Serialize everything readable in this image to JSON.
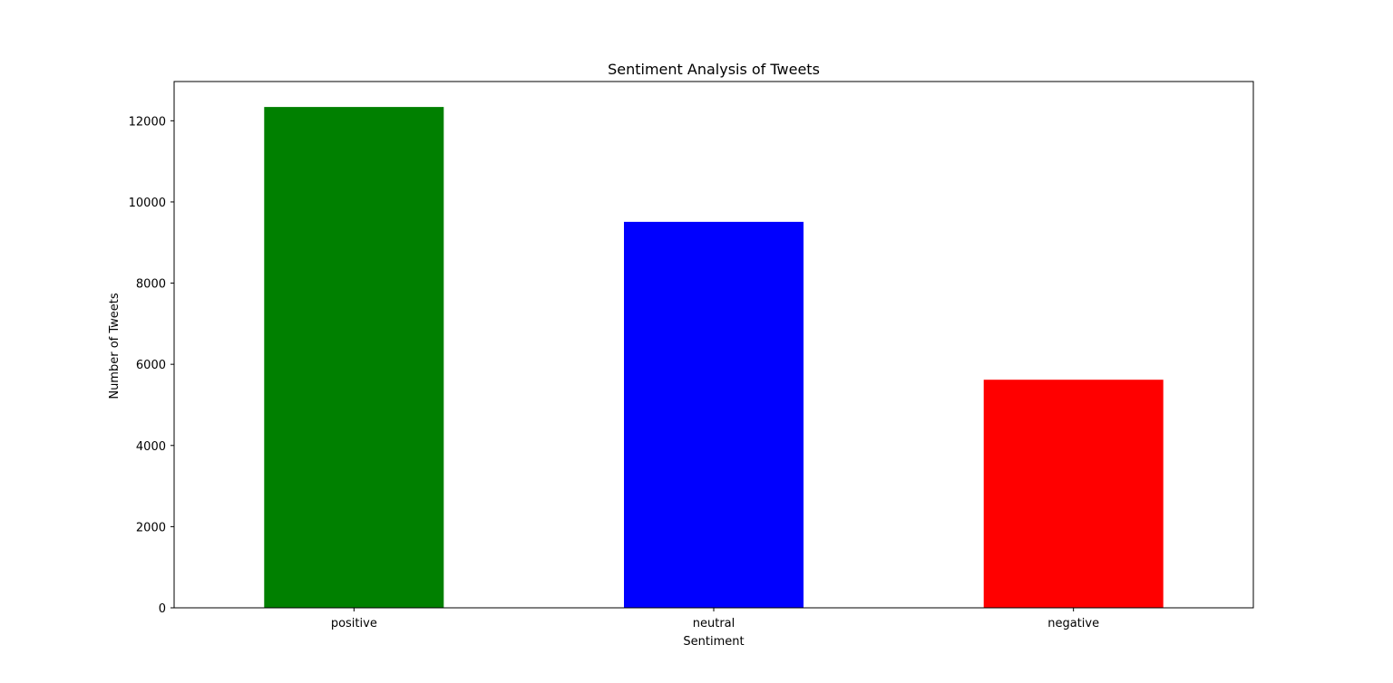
{
  "chart_data": {
    "type": "bar",
    "title": "Sentiment Analysis of Tweets",
    "xlabel": "Sentiment",
    "ylabel": "Number of Tweets",
    "categories": [
      "positive",
      "neutral",
      "negative"
    ],
    "values": [
      12340,
      9510,
      5620
    ],
    "colors": [
      "#008000",
      "#0000ff",
      "#ff0000"
    ],
    "ylim": [
      0,
      12967
    ],
    "yticks": [
      0,
      2000,
      4000,
      6000,
      8000,
      10000,
      12000
    ],
    "ytick_labels": [
      "0",
      "2000",
      "4000",
      "6000",
      "8000",
      "10000",
      "12000"
    ],
    "grid": false,
    "legend": "none"
  }
}
